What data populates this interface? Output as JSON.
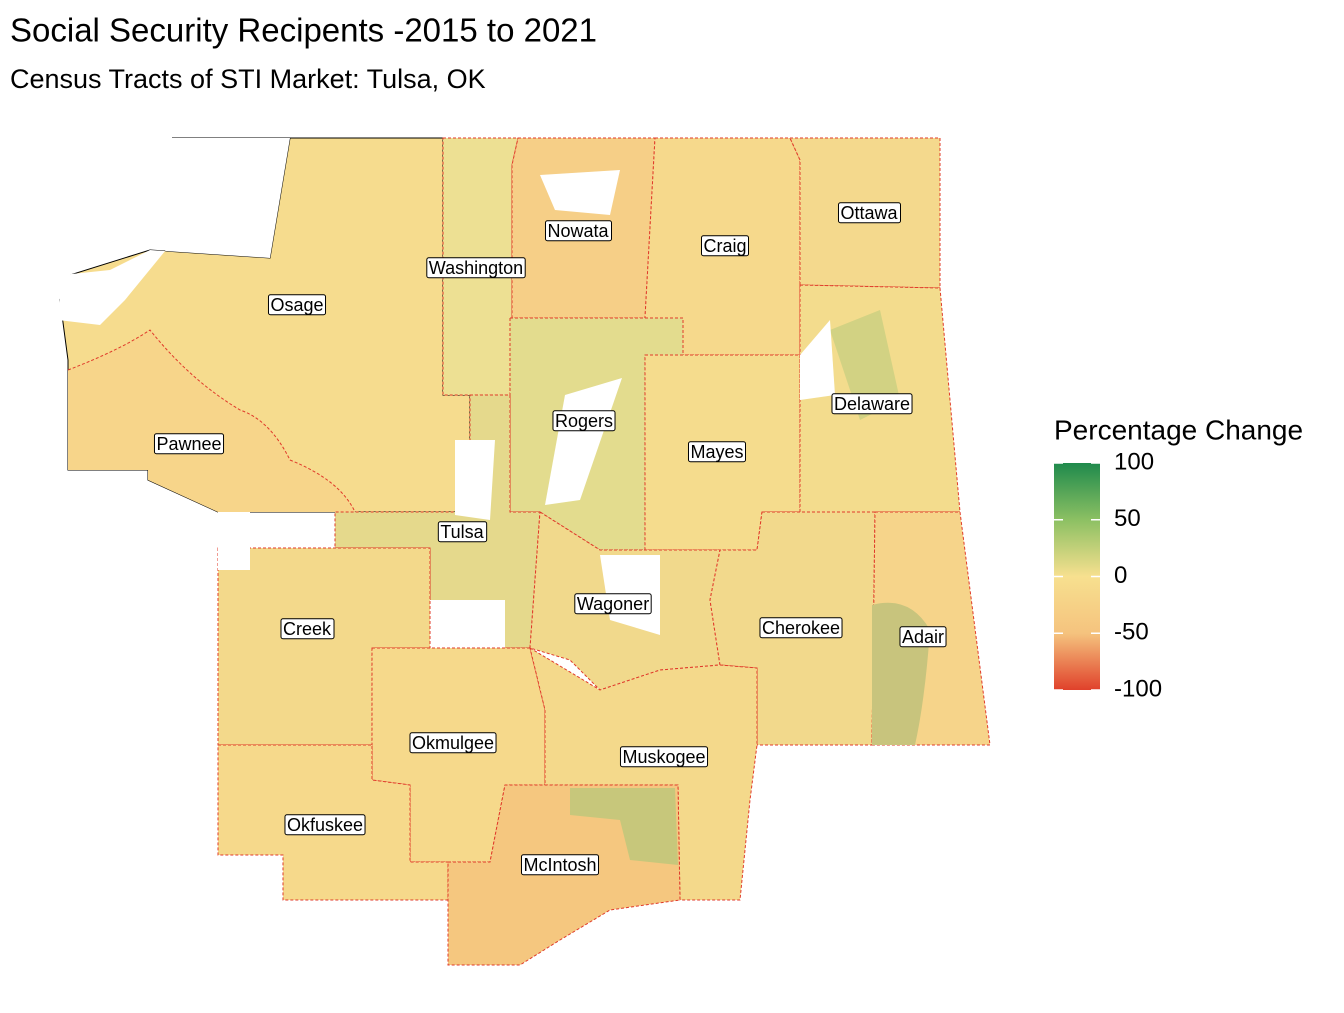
{
  "title": "Social Security Recipents -2015 to 2021",
  "subtitle": "Census Tracts of STI Market: Tulsa, OK",
  "legend": {
    "title": "Percentage Change",
    "limits": [
      -100,
      100
    ],
    "ticks": [
      100,
      50,
      0,
      -50,
      -100
    ],
    "colors": [
      "#e0412b",
      "#f5c37e",
      "#f7e08f",
      "#8cc063",
      "#1f8a4c"
    ]
  },
  "counties": [
    "Osage",
    "Washington",
    "Nowata",
    "Craig",
    "Ottawa",
    "Pawnee",
    "Rogers",
    "Mayes",
    "Delaware",
    "Tulsa",
    "Wagoner",
    "Cherokee",
    "Adair",
    "Creek",
    "Okmulgee",
    "Muskogee",
    "Okfuskee",
    "McIntosh"
  ]
}
